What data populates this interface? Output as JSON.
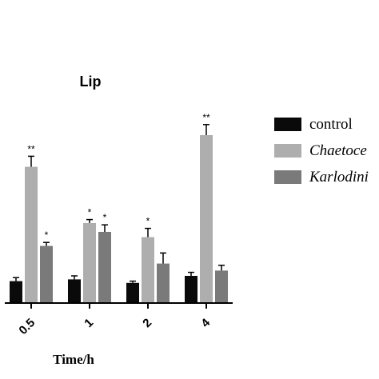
{
  "chart_data": {
    "type": "bar",
    "title": "Lip",
    "xlabel": "Time/h",
    "ylabel": "",
    "categories": [
      "0.5",
      "1",
      "2",
      "4"
    ],
    "ylim": [
      0,
      100
    ],
    "series": [
      {
        "name": "control",
        "color": "#0a0a0a",
        "values": [
          12,
          13,
          11,
          15
        ],
        "errors": [
          2,
          2,
          1,
          2
        ],
        "sig": [
          "",
          "",
          "",
          ""
        ]
      },
      {
        "name": "Chaetoce",
        "color": "#aeaeae",
        "values": [
          77,
          45,
          37,
          95
        ],
        "errors": [
          6,
          2,
          5,
          6
        ],
        "sig": [
          "**",
          "*",
          "*",
          "**"
        ]
      },
      {
        "name": "Karlodini",
        "color": "#7a7a7a",
        "values": [
          32,
          40,
          22,
          18
        ],
        "errors": [
          2,
          4,
          6,
          3
        ],
        "sig": [
          "*",
          "*",
          "",
          ""
        ]
      }
    ],
    "legend_position": "right",
    "grid": false
  }
}
